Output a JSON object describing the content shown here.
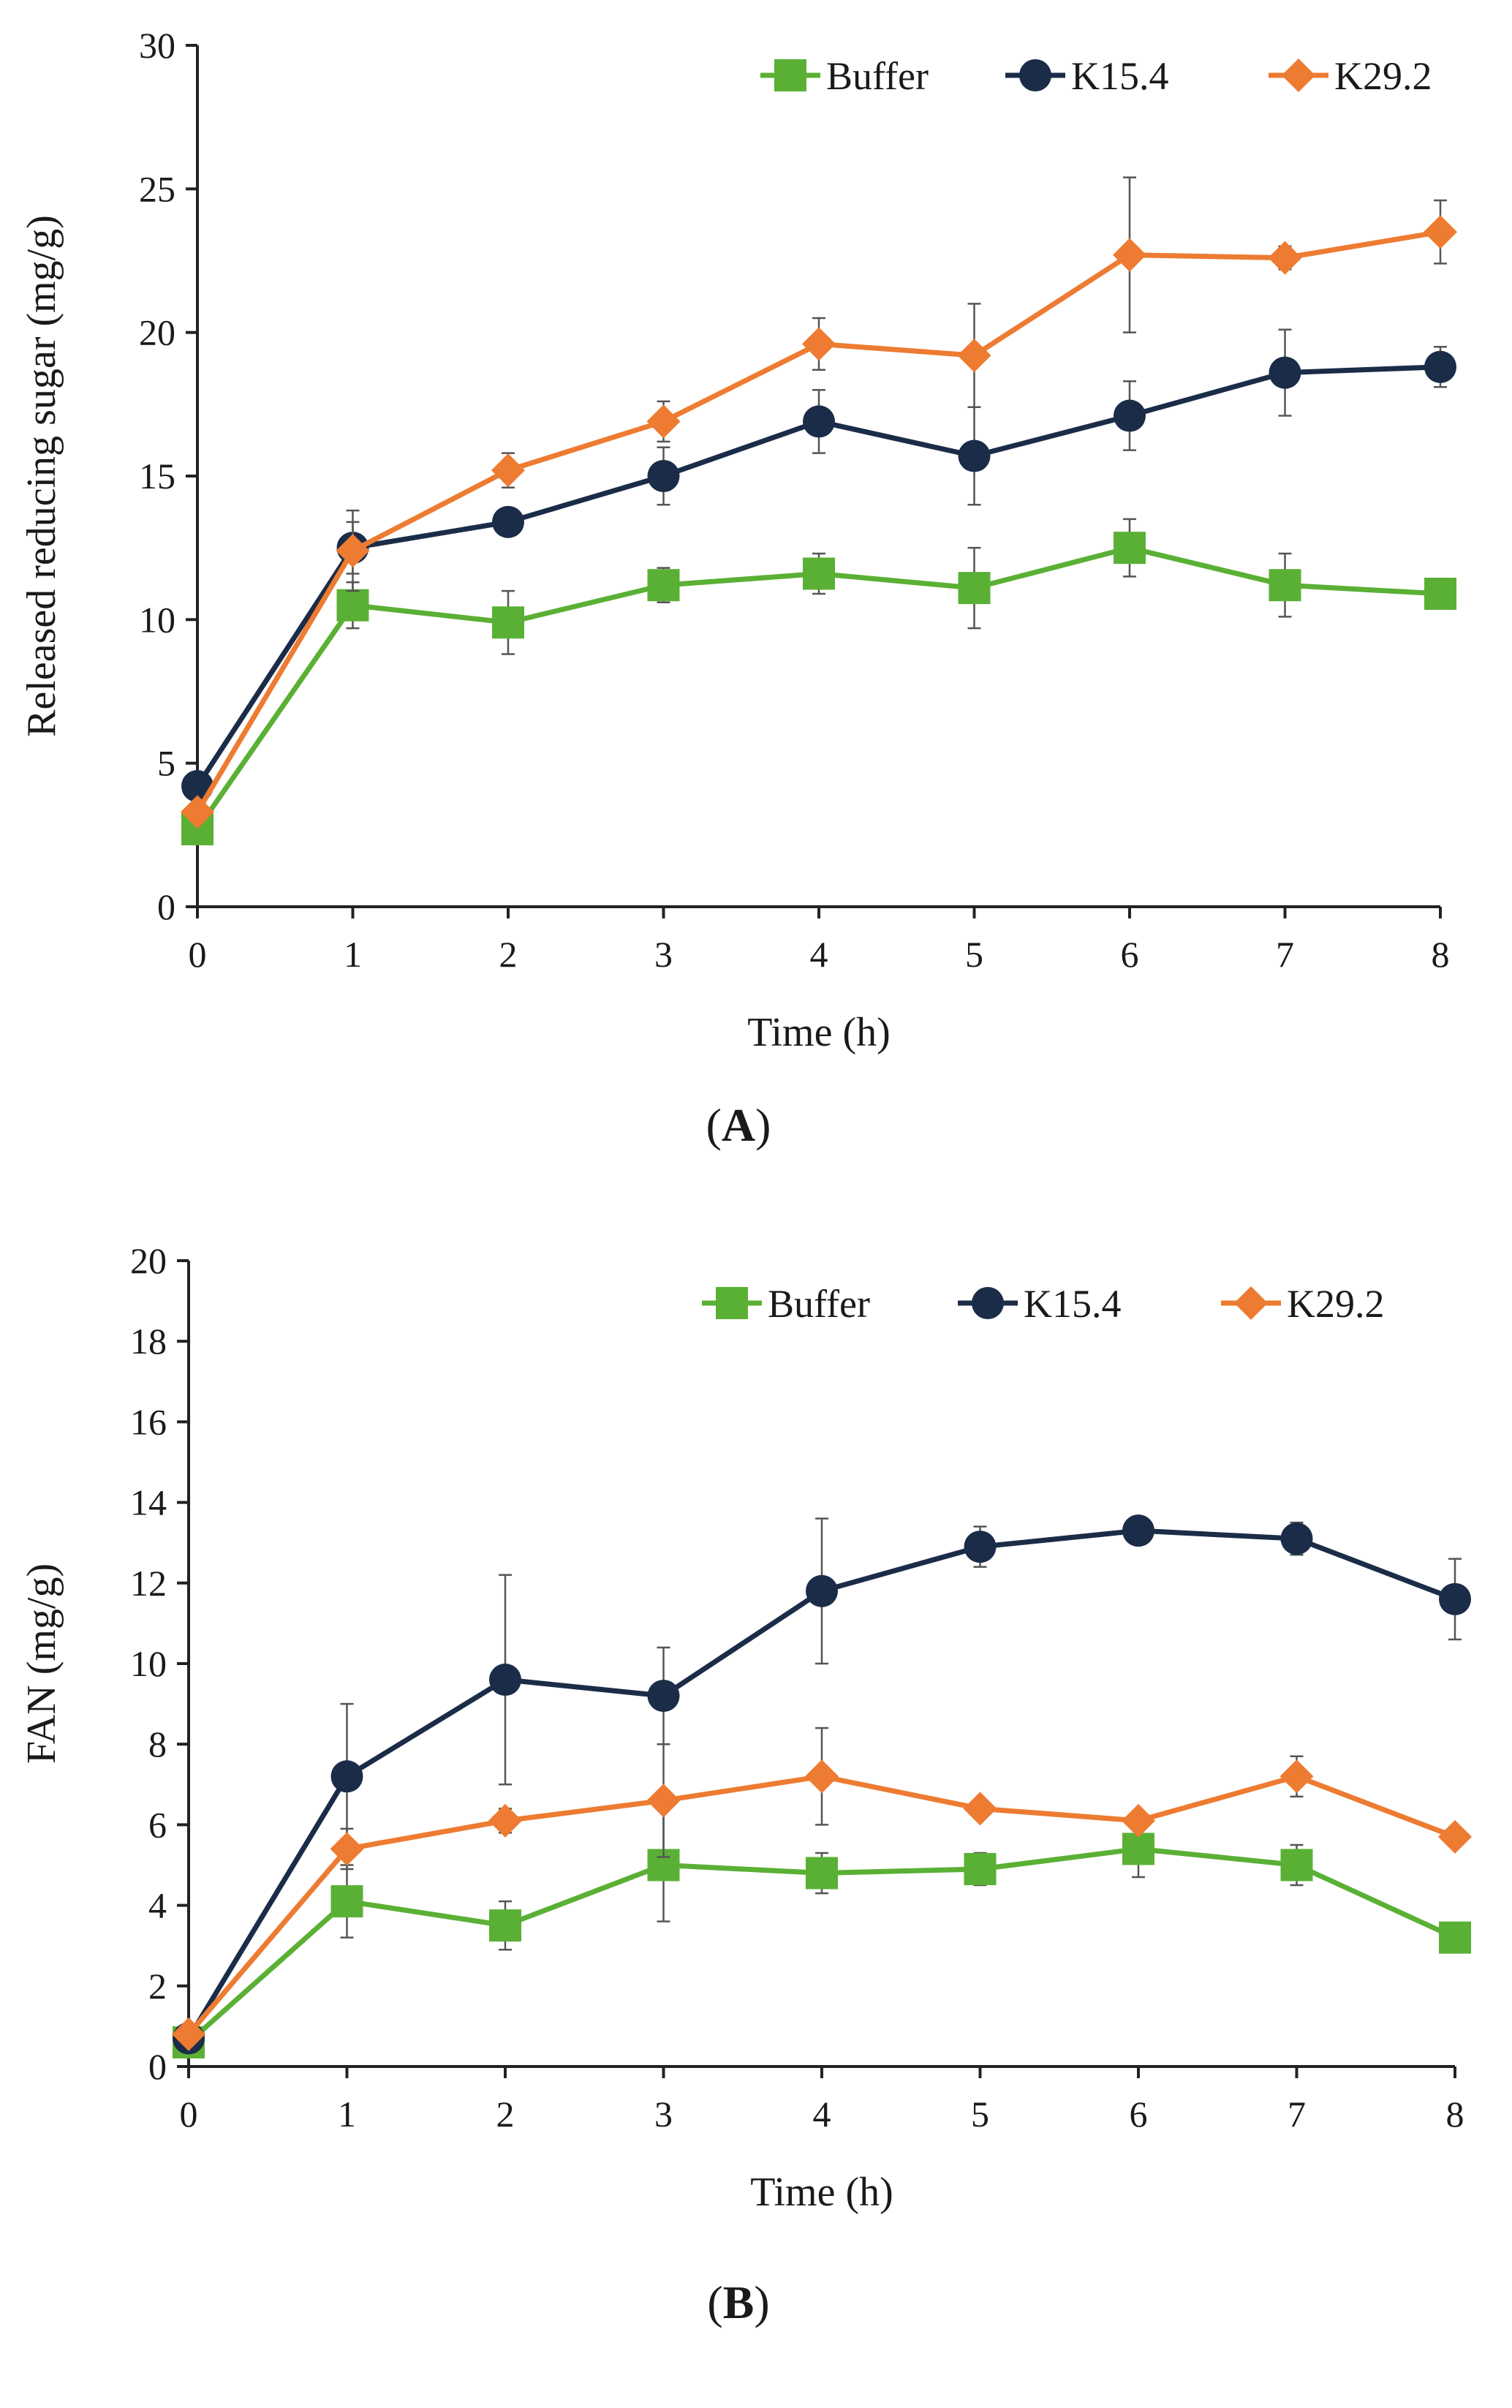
{
  "chart_data": [
    {
      "type": "line",
      "panel_label": "A",
      "xlabel": "Time (h)",
      "ylabel": "Released reducing sugar (mg/g)",
      "x": [
        0,
        1,
        2,
        3,
        4,
        5,
        6,
        7,
        8
      ],
      "xlim": [
        0,
        8
      ],
      "ylim": [
        0,
        30
      ],
      "x_ticks": [
        "0",
        "1",
        "2",
        "3",
        "4",
        "5",
        "6",
        "7",
        "8"
      ],
      "y_ticks": [
        "0",
        "5",
        "10",
        "15",
        "20",
        "25",
        "30"
      ],
      "legend_position": "top-right",
      "series": [
        {
          "name": "Buffer",
          "color": "#5ab034",
          "marker": "square",
          "values": [
            2.7,
            10.5,
            9.9,
            11.2,
            11.6,
            11.1,
            12.5,
            11.2,
            10.9
          ],
          "errors": [
            0.3,
            0.8,
            1.1,
            0.6,
            0.7,
            1.4,
            1.0,
            1.1,
            0.3
          ]
        },
        {
          "name": "K15.4",
          "color": "#1b2c48",
          "marker": "circle",
          "values": [
            4.2,
            12.5,
            13.4,
            15.0,
            16.9,
            15.7,
            17.1,
            18.6,
            18.8
          ],
          "errors": [
            0.3,
            0.9,
            0.4,
            1.0,
            1.1,
            1.7,
            1.2,
            1.5,
            0.7
          ]
        },
        {
          "name": "K29.2",
          "color": "#ed7b31",
          "marker": "diamond",
          "values": [
            3.3,
            12.4,
            15.2,
            16.9,
            19.6,
            19.2,
            22.7,
            22.6,
            23.5
          ],
          "errors": [
            0.3,
            1.4,
            0.6,
            0.7,
            0.9,
            1.8,
            2.7,
            0.4,
            1.1
          ]
        }
      ]
    },
    {
      "type": "line",
      "panel_label": "B",
      "xlabel": "Time (h)",
      "ylabel": "FAN (mg/g)",
      "x": [
        0,
        1,
        2,
        3,
        4,
        5,
        6,
        7,
        8
      ],
      "xlim": [
        0,
        8
      ],
      "ylim": [
        0,
        20
      ],
      "x_ticks": [
        "0",
        "1",
        "2",
        "3",
        "4",
        "5",
        "6",
        "7",
        "8"
      ],
      "y_ticks": [
        "0",
        "2",
        "4",
        "6",
        "8",
        "10",
        "12",
        "14",
        "16",
        "18",
        "20"
      ],
      "legend_position": "top-right",
      "series": [
        {
          "name": "Buffer",
          "color": "#5ab034",
          "marker": "square",
          "values": [
            0.6,
            4.1,
            3.5,
            5.0,
            4.8,
            4.9,
            5.4,
            5.0,
            3.2
          ],
          "errors": [
            0.2,
            0.9,
            0.6,
            1.4,
            0.5,
            0.4,
            0.7,
            0.5,
            0.2
          ]
        },
        {
          "name": "K15.4",
          "color": "#1b2c48",
          "marker": "circle",
          "values": [
            0.7,
            7.2,
            9.6,
            9.2,
            11.8,
            12.9,
            13.3,
            13.1,
            11.6
          ],
          "errors": [
            0.2,
            1.8,
            2.6,
            1.2,
            1.8,
            0.5,
            0.2,
            0.4,
            1.0
          ]
        },
        {
          "name": "K29.2",
          "color": "#ed7b31",
          "marker": "diamond",
          "values": [
            0.8,
            5.4,
            6.1,
            6.6,
            7.2,
            6.4,
            6.1,
            7.2,
            5.7
          ],
          "errors": [
            0.2,
            0.5,
            0.3,
            1.4,
            1.2,
            0.2,
            0.2,
            0.5,
            0.2
          ]
        }
      ]
    }
  ]
}
